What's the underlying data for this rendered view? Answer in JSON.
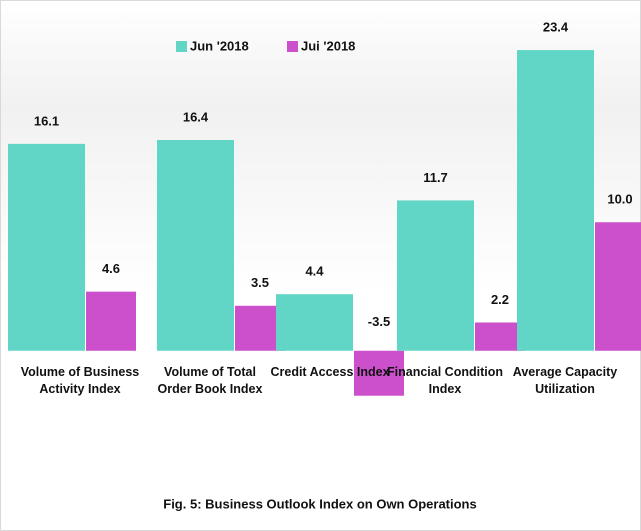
{
  "chart_data": {
    "type": "bar",
    "title": "Fig. 5: Business Outlook Index on Own Operations",
    "categories": [
      "Volume of Business Activity Index",
      "Volume of Total Order Book Index",
      "Credit Access Index",
      "Financial Condition Index",
      "Average Capacity Utilization"
    ],
    "series": [
      {
        "name": "Jun '2018",
        "color": "#62d6c6",
        "values": [
          16.1,
          16.4,
          4.4,
          11.7,
          23.4
        ],
        "value_labels": [
          "16.1",
          "16.4",
          "4.4",
          "11.7",
          "23.4"
        ]
      },
      {
        "name": "Jui '2018",
        "color": "#cc4fcc",
        "values": [
          4.6,
          3.5,
          -3.5,
          2.2,
          10.0
        ],
        "value_labels": [
          "4.6",
          "3.5",
          "-3.5",
          "2.2",
          "10.0"
        ]
      }
    ],
    "ylim": [
      -5,
      25
    ],
    "legend": "top"
  }
}
